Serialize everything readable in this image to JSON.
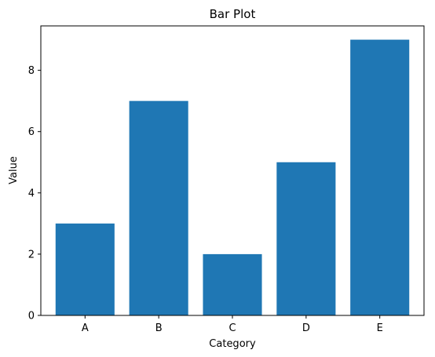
{
  "chart_data": {
    "type": "bar",
    "title": "Bar Plot",
    "xlabel": "Category",
    "ylabel": "Value",
    "categories": [
      "A",
      "B",
      "C",
      "D",
      "E"
    ],
    "values": [
      3,
      7,
      2,
      5,
      9
    ],
    "ylim": [
      0,
      9.45
    ],
    "yticks": [
      0,
      2,
      4,
      6,
      8
    ],
    "grid": false,
    "legend": "none",
    "colors": {
      "bar": "#1f77b4",
      "axis": "#000000",
      "background": "#ffffff"
    }
  }
}
